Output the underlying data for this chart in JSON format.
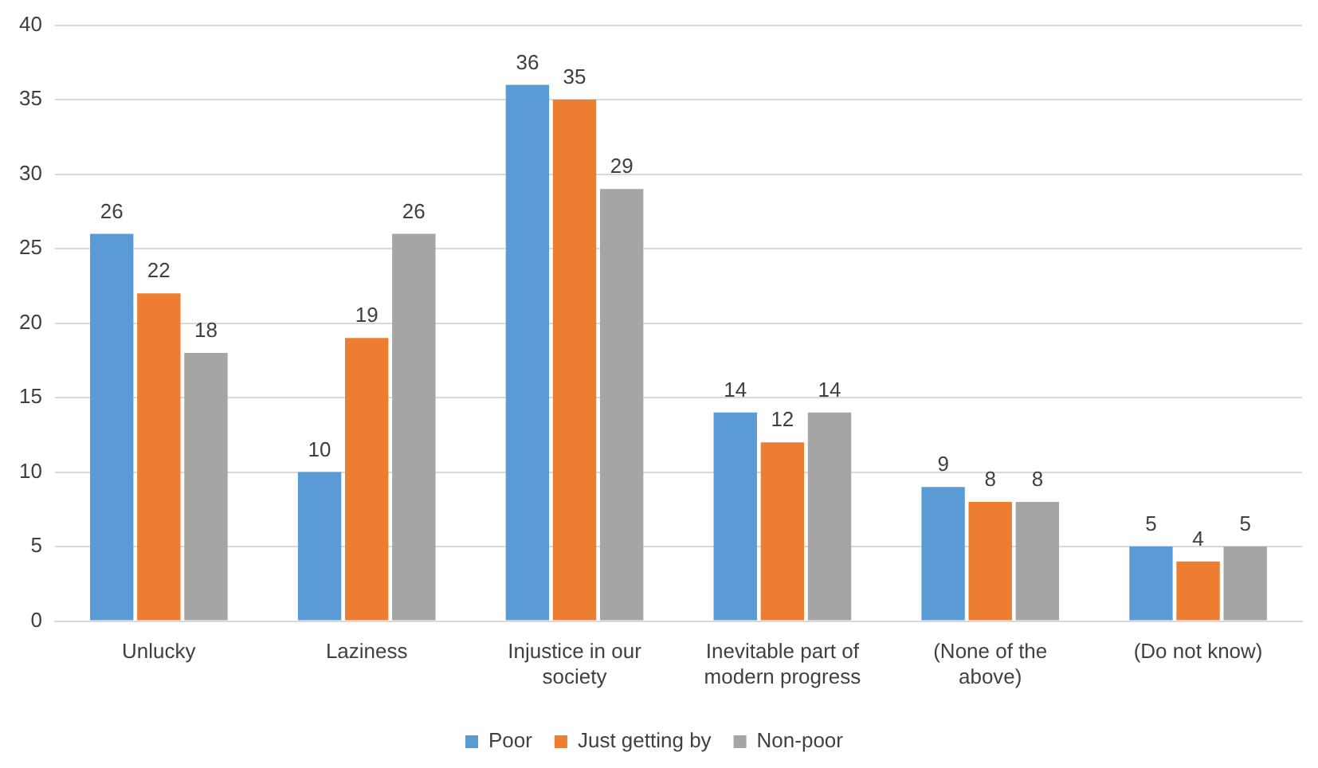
{
  "chart_data": {
    "type": "bar",
    "categories": [
      "Unlucky",
      "Laziness",
      "Injustice in our society",
      "Inevitable part of modern progress",
      "(None of the above)",
      "(Do not know)"
    ],
    "series": [
      {
        "name": "Poor",
        "color": "#5b9bd5",
        "values": [
          26,
          10,
          36,
          14,
          9,
          5
        ]
      },
      {
        "name": "Just getting by",
        "color": "#ed7d31",
        "values": [
          22,
          19,
          35,
          12,
          8,
          4
        ]
      },
      {
        "name": "Non-poor",
        "color": "#a5a5a5",
        "values": [
          18,
          26,
          29,
          14,
          8,
          5
        ]
      }
    ],
    "ylim": [
      0,
      40
    ],
    "yticks": [
      0,
      5,
      10,
      15,
      20,
      25,
      30,
      35,
      40
    ],
    "grid": "y",
    "legend": "bottom",
    "data_labels": true
  }
}
